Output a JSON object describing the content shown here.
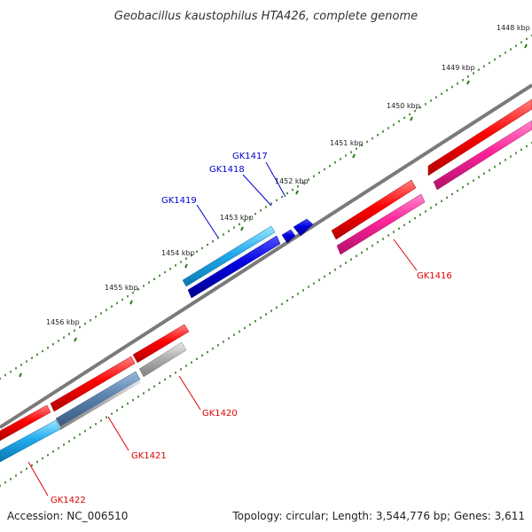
{
  "title": "Geobacillus kaustophilus HTA426, complete genome",
  "footer": {
    "accession": "Accession: NC_006510",
    "summary": "Topology: circular; Length: 3,544,776 bp; Genes: 3,611"
  },
  "kbp_labels": [
    "1448 kbp",
    "1449 kbp",
    "1450 kbp",
    "1451 kbp",
    "1452 kbp",
    "1453 kbp",
    "1454 kbp",
    "1455 kbp",
    "1456 kbp"
  ],
  "genes": {
    "GK1416": "GK1416",
    "GK1417": "GK1417",
    "GK1418": "GK1418",
    "GK1419": "GK1419",
    "GK1420": "GK1420",
    "GK1421": "GK1421",
    "GK1422": "GK1422"
  },
  "colors": {
    "backbone": "#808080",
    "cds_red": "#ff0000",
    "gene_pink": "#ff3399",
    "gene_blue": "#0000cc",
    "gene_cyan": "#22aaee",
    "gene_gray": "#aaaaaa",
    "tick_green": "#2a7a1a",
    "label_blue": "#0000cc",
    "label_red": "#dd0000"
  }
}
